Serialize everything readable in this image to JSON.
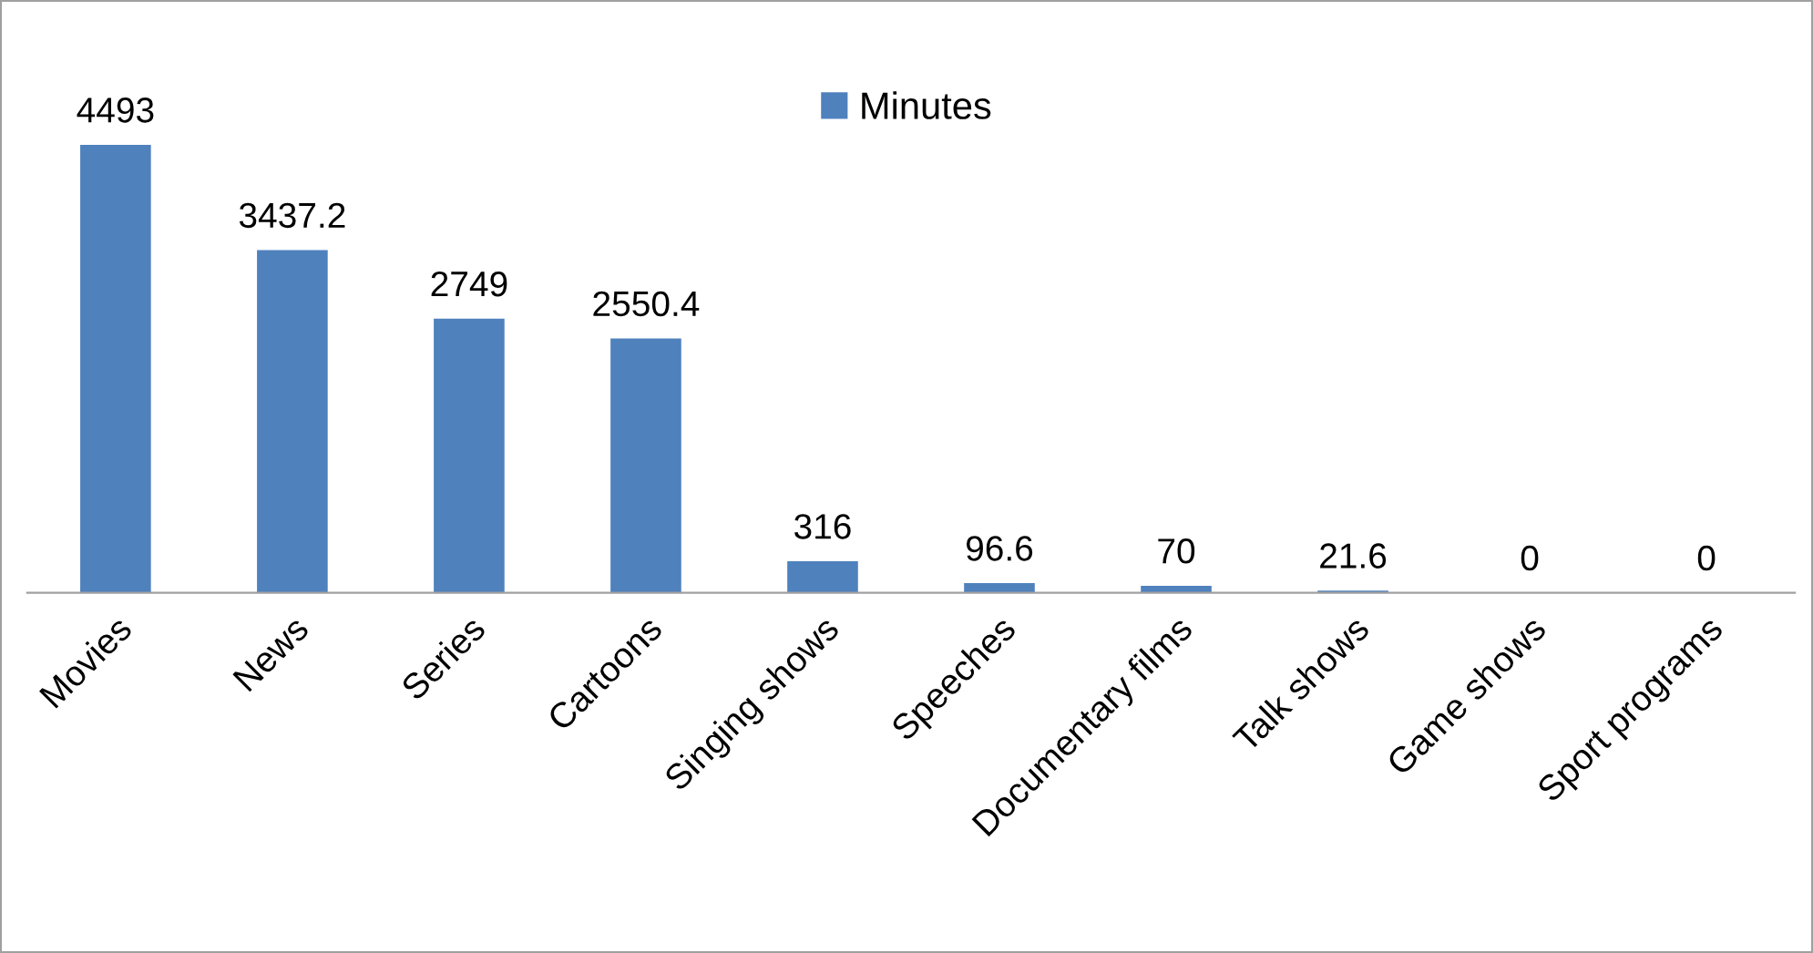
{
  "chart_data": {
    "type": "bar",
    "categories": [
      "Movies",
      "News",
      "Series",
      "Cartoons",
      "Singing shows",
      "Speeches",
      "Documentary films",
      "Talk shows",
      "Game shows",
      "Sport programs"
    ],
    "series": [
      {
        "name": "Minutes",
        "color": "#4f81bd",
        "values": [
          4493,
          3437.2,
          2749,
          2550.4,
          316,
          96.6,
          70,
          21.6,
          0,
          0
        ]
      }
    ],
    "data_labels": true,
    "legend": "top",
    "grid": false
  }
}
